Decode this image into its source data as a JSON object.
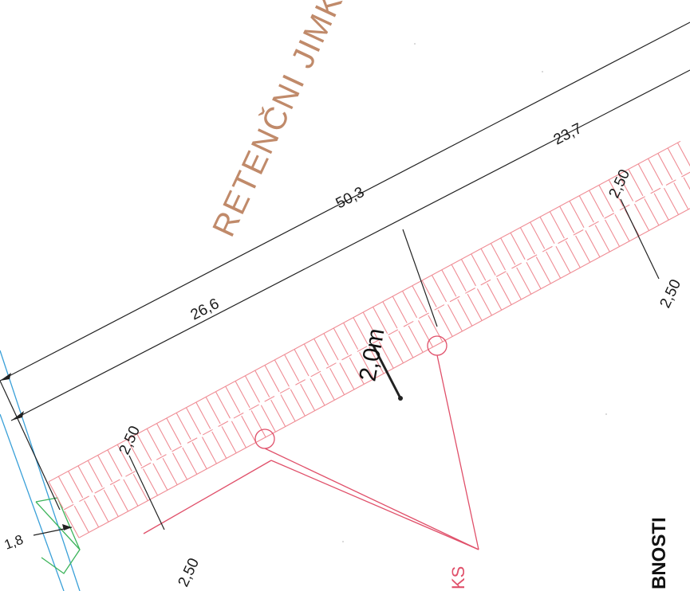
{
  "drawing": {
    "title": "RETENČNI JIMK",
    "side_label": "BNOSTI",
    "red_label": "KS",
    "width_label": "2,0m"
  },
  "dimensions": {
    "total": "50,3",
    "left_segment": "26,6",
    "right_segment": "23,7",
    "edge": "1,8",
    "left_top": "2,50",
    "left_bottom": "2,50",
    "right_top": "2,50",
    "right_bottom": "2,50"
  },
  "colors": {
    "hatch": "#ef8c94",
    "dimension_line": "#222222",
    "title": "#c08a6a",
    "boundary_blue": "#3aa0d8",
    "boundary_green": "#3cb45a",
    "label_red": "#e0506a"
  }
}
